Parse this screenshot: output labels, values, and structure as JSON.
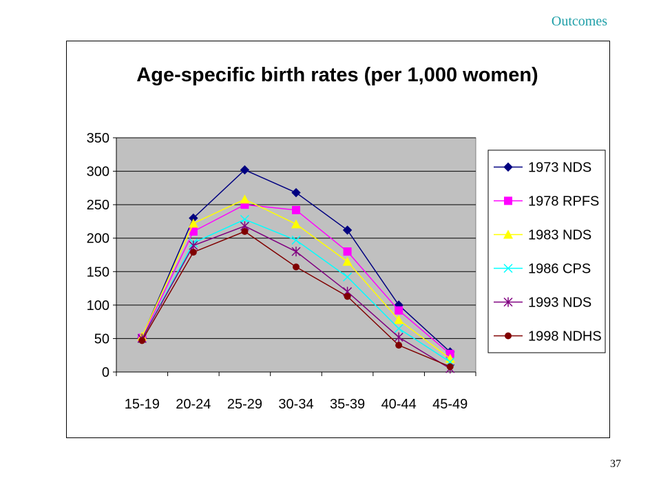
{
  "header": {
    "section": "Outcomes"
  },
  "footer": {
    "page_number": "37"
  },
  "chart_data": {
    "type": "line",
    "title": "Age-specific birth rates (per 1,000 women)",
    "xlabel": "",
    "ylabel": "",
    "categories": [
      "15-19",
      "20-24",
      "25-29",
      "30-34",
      "35-39",
      "40-44",
      "45-49"
    ],
    "ylim": [
      0,
      350
    ],
    "yticks": [
      0,
      50,
      100,
      150,
      200,
      250,
      300,
      350
    ],
    "grid": true,
    "plot_background": "#c0c0c0",
    "legend_position": "right",
    "series": [
      {
        "name": "1973 NDS",
        "color": "#000080",
        "marker": "diamond",
        "values": [
          52,
          230,
          302,
          268,
          212,
          100,
          30
        ]
      },
      {
        "name": "1978 RPFS",
        "color": "#ff00ff",
        "marker": "square",
        "values": [
          51,
          210,
          250,
          242,
          180,
          92,
          27
        ]
      },
      {
        "name": "1983 NDS",
        "color": "#ffff00",
        "marker": "triangle",
        "values": [
          53,
          222,
          258,
          221,
          165,
          78,
          20
        ]
      },
      {
        "name": "1986 CPS",
        "color": "#00ffff",
        "marker": "x",
        "values": [
          50,
          193,
          228,
          197,
          142,
          65,
          15
        ]
      },
      {
        "name": "1993 NDS",
        "color": "#800080",
        "marker": "star",
        "values": [
          50,
          189,
          218,
          180,
          120,
          52,
          5
        ]
      },
      {
        "name": "1998 NDHS",
        "color": "#800000",
        "marker": "circle",
        "values": [
          47,
          179,
          210,
          157,
          113,
          40,
          8
        ]
      }
    ]
  }
}
